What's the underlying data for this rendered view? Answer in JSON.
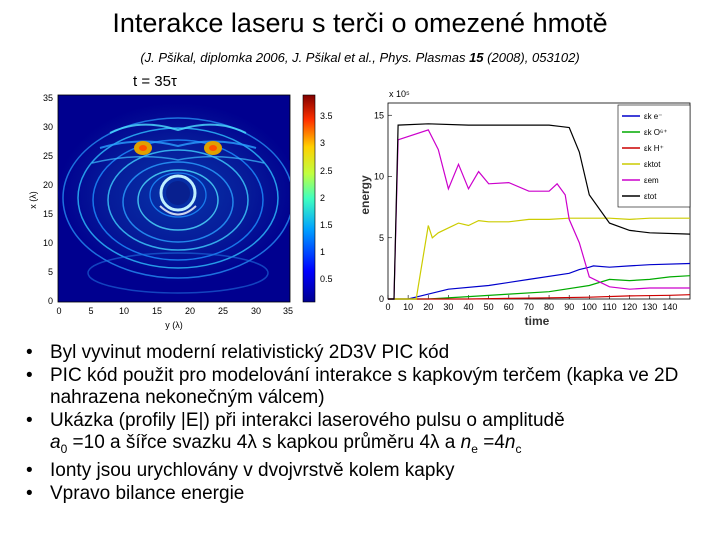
{
  "slide": {
    "title": "Interakce laseru s terči o omezené hmotě",
    "subtitle": {
      "pre": "(J. Pšikal, diplomka 2006, J. Pšikal et al., Phys. Plasmas ",
      "volume": "15",
      "post": " (2008), 053102)"
    },
    "time_label": "t = 35τ"
  },
  "left_figure": {
    "y_ticks": [
      "35",
      "30",
      "25",
      "20",
      "15",
      "10",
      "5",
      "0"
    ],
    "x_ticks": [
      "0",
      "5",
      "10",
      "15",
      "20",
      "25",
      "30",
      "35"
    ],
    "ylabel": "x (λ)",
    "xlabel": "y (λ)",
    "colorbar_ticks": [
      "3.5",
      "3",
      "2.5",
      "2",
      "1.5",
      "1",
      "0.5"
    ]
  },
  "chart_data": {
    "type": "line",
    "xlabel": "time",
    "ylabel": "energy",
    "y_multiplier": "x 10⁵",
    "xlim": [
      0,
      150
    ],
    "ylim": [
      0,
      16
    ],
    "x_ticks": [
      "0",
      "10",
      "20",
      "30",
      "40",
      "50",
      "60",
      "70",
      "80",
      "90",
      "100",
      "110",
      "120",
      "130",
      "140"
    ],
    "y_ticks": [
      "15",
      "10",
      "5",
      "0"
    ],
    "legend_placement": "right",
    "series": [
      {
        "name": "εk e⁻",
        "color": "#0000cc",
        "x": [
          0,
          10,
          15,
          30,
          50,
          70,
          90,
          95,
          100,
          102,
          110,
          120,
          130,
          150
        ],
        "y": [
          0,
          0,
          0.2,
          0.8,
          1.1,
          1.6,
          2.1,
          2.4,
          2.6,
          2.7,
          2.6,
          2.7,
          2.8,
          2.9
        ]
      },
      {
        "name": "εk O⁶⁺",
        "color": "#00aa00",
        "x": [
          0,
          20,
          40,
          60,
          80,
          100,
          110,
          120,
          130,
          140,
          150
        ],
        "y": [
          0,
          0,
          0.2,
          0.4,
          0.6,
          1.1,
          1.6,
          1.5,
          1.6,
          1.8,
          1.9
        ]
      },
      {
        "name": "εk H⁺",
        "color": "#cc0000",
        "x": [
          0,
          40,
          60,
          80,
          100,
          120,
          140,
          150
        ],
        "y": [
          0,
          0,
          0.05,
          0.1,
          0.15,
          0.25,
          0.3,
          0.35
        ]
      },
      {
        "name": "εktot",
        "color": "#cccc00",
        "x": [
          0,
          14,
          16,
          20,
          22,
          25,
          30,
          35,
          40,
          45,
          50,
          60,
          70,
          80,
          90,
          100,
          110,
          120,
          130,
          140,
          150
        ],
        "y": [
          0,
          0,
          2,
          6,
          5,
          5.4,
          5.8,
          6.2,
          6.0,
          6.4,
          6.3,
          6.3,
          6.5,
          6.5,
          6.6,
          6.6,
          6.6,
          6.5,
          6.6,
          6.6,
          6.6
        ]
      },
      {
        "name": "εem",
        "color": "#cc00cc",
        "x": [
          0,
          3,
          5,
          20,
          25,
          30,
          35,
          40,
          45,
          50,
          60,
          70,
          80,
          84,
          88,
          90,
          95,
          100,
          110,
          120,
          130,
          150
        ],
        "y": [
          0,
          0,
          13,
          13.8,
          12.2,
          9,
          11,
          9,
          10.4,
          9.4,
          9.5,
          8.8,
          8.8,
          9.4,
          8.5,
          6.5,
          4.6,
          1.8,
          1.0,
          0.8,
          0.9,
          0.9
        ]
      },
      {
        "name": "εtot",
        "color": "#000000",
        "x": [
          0,
          3,
          5,
          20,
          40,
          60,
          70,
          72,
          75,
          80,
          85,
          90,
          95,
          100,
          110,
          120,
          130,
          150
        ],
        "y": [
          0,
          0,
          14.2,
          14.3,
          14.2,
          14.2,
          14.2,
          14.2,
          14.2,
          14.2,
          14.1,
          14.0,
          12.0,
          8.5,
          6.2,
          5.6,
          5.4,
          5.3
        ]
      }
    ]
  },
  "bullets": [
    {
      "text": "Byl vyvinut moderní relativistický 2D3V PIC kód"
    },
    {
      "text": "PIC kód použit pro modelování interakce s kapkovým terčem (kapka ve 2D nahrazena nekonečným válcem)"
    },
    {
      "l1": "Ukázka (profily |E|) při interakci laserového pulsu o amplitudě",
      "a": "a",
      "a_sub": "0",
      "mid1": " =10 a šířce svazku 4λ s kapkou průměru 4λ a ",
      "n": "n",
      "n_sub": "e",
      "mid2": " =4",
      "nc": "n",
      "nc_sub": "c"
    },
    {
      "text": "Ionty jsou urychlovány v dvojvrstvě kolem kapky"
    },
    {
      "text": "Vpravo bilance energie"
    }
  ],
  "bullet_marker": "•"
}
